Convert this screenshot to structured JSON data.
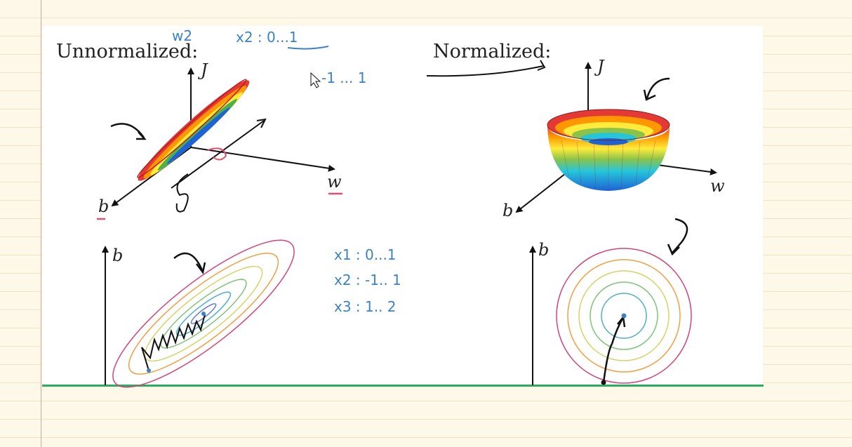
{
  "titles": {
    "left": "Unnormalized:",
    "right": "Normalized:"
  },
  "axes": {
    "j": "J",
    "w": "w",
    "b": "b"
  },
  "handwriting": {
    "top_w2": "w2",
    "top_x2": "x2 : 0...1",
    "top_neg": "-1 ... 1",
    "note_x1": "x1 : 0...1",
    "note_x2": "x2 : -1.. 1",
    "note_x3": "x3 : 1.. 2"
  },
  "colors": {
    "ink": "#111111",
    "pen_blue": "#3b82c4",
    "pen_red": "#e0506a",
    "baseline": "#27ae60"
  }
}
